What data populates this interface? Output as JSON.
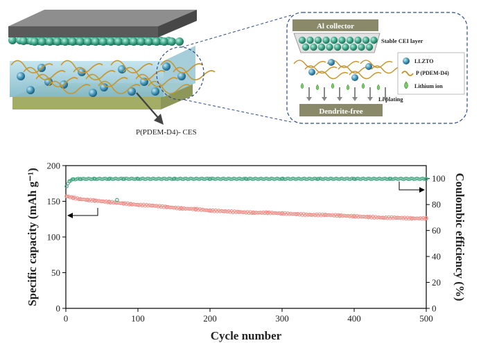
{
  "schematic": {
    "main_label": "P(PDEM-D4)- CES",
    "inset": {
      "top_bar": "Al collector",
      "bottom_bar": "Dendrite-free",
      "cei_label": "Stable CEI layer",
      "plating_label": "Li plating",
      "legend": [
        "LLZTO",
        "P (PDEM-D4)",
        "Lithium ion"
      ]
    }
  },
  "colors": {
    "capacity": "#f0908a",
    "efficiency": "#4aa884",
    "bead": "#3fa78b",
    "polymer": "#c8962e",
    "top_plate": "#6d6d6d",
    "bottom_plate": "#b6bf7c",
    "inset_bar": "#8a8a6a"
  },
  "chart_data": {
    "type": "scatter",
    "xlabel": "Cycle number",
    "ylabel_left": "Specific capacity (mAh g⁻¹)",
    "ylabel_right": "Coulombic efficiency (%)",
    "xlim": [
      0,
      500
    ],
    "ylim_left": [
      0,
      200
    ],
    "ylim_right": [
      0,
      110
    ],
    "x_ticks": [
      0,
      100,
      200,
      300,
      400,
      500
    ],
    "y_left_ticks": [
      0,
      50,
      100,
      150,
      200
    ],
    "y_right_ticks": [
      0,
      20,
      40,
      60,
      80,
      100
    ],
    "series": [
      {
        "name": "Specific capacity",
        "axis": "left",
        "x": [
          1,
          10,
          20,
          30,
          40,
          50,
          60,
          70,
          80,
          90,
          100,
          120,
          140,
          160,
          180,
          200,
          220,
          240,
          260,
          280,
          300,
          320,
          340,
          360,
          380,
          400,
          420,
          440,
          460,
          480,
          500
        ],
        "y": [
          157,
          155,
          153,
          152,
          151,
          150,
          149,
          148,
          147,
          146,
          145,
          144,
          142,
          140,
          139,
          137,
          136,
          135,
          134,
          134,
          133,
          132,
          131,
          131,
          130,
          129,
          128,
          127,
          127,
          126,
          126
        ]
      },
      {
        "name": "Coulombic efficiency",
        "axis": "right",
        "x": [
          1,
          5,
          10,
          20,
          40,
          60,
          80,
          100,
          150,
          200,
          250,
          300,
          350,
          400,
          450,
          500
        ],
        "y": [
          94,
          98,
          99.5,
          99.7,
          99.8,
          99.8,
          99.8,
          99.8,
          99.8,
          99.8,
          99.8,
          99.8,
          99.8,
          99.8,
          99.8,
          99.8
        ]
      }
    ],
    "annotations": [
      {
        "x": 71,
        "y": 152,
        "axis": "left",
        "note": "outlier"
      }
    ],
    "grid": false,
    "legend": "none"
  }
}
